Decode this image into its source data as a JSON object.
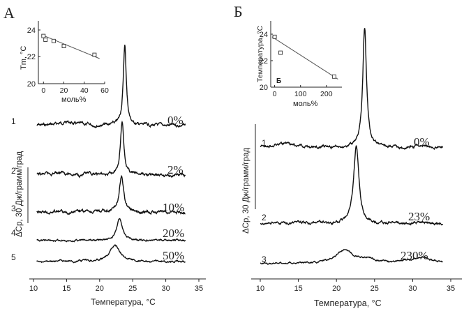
{
  "chart_data": [
    {
      "type": "line",
      "panel_label": "А",
      "xlabel": "Температура, °C",
      "ylabel": "ΔCp, 30 Дж/грамм/град",
      "xlim": [
        10,
        35
      ],
      "xticks": [
        "10",
        "15",
        "20",
        "25",
        "30",
        "35"
      ],
      "series": [
        {
          "name": "1",
          "concentration_label": "0%",
          "baseline": 180,
          "noise": 2.5,
          "features": [
            [
              23.8,
              0.28,
              115
            ],
            [
              15.0,
              1.3,
              5
            ]
          ]
        },
        {
          "name": "2",
          "concentration_label": "2%",
          "baseline": 251,
          "noise": 2.5,
          "features": [
            [
              23.4,
              0.32,
              77
            ],
            [
              14.0,
              1.3,
              4
            ]
          ]
        },
        {
          "name": "3",
          "concentration_label": "10%",
          "baseline": 304,
          "noise": 2.5,
          "features": [
            [
              23.3,
              0.4,
              51
            ]
          ]
        },
        {
          "name": "4",
          "concentration_label": "20%",
          "baseline": 345,
          "noise": 1.5,
          "features": [
            [
              23.0,
              0.5,
              33
            ]
          ]
        },
        {
          "name": "5",
          "concentration_label": "50%",
          "baseline": 375,
          "noise": 1.5,
          "features": [
            [
              22.3,
              0.9,
              24
            ]
          ]
        }
      ],
      "inset": {
        "xlabel": "моль%",
        "ylabel": "Tm, °C",
        "xlim": [
          -5,
          60
        ],
        "ylim": [
          20,
          25
        ],
        "xticks": [
          "0",
          "20",
          "40",
          "60"
        ],
        "yticks": [
          "20",
          "22",
          "24"
        ],
        "points": [
          [
            0,
            23.8
          ],
          [
            2,
            23.5
          ],
          [
            10,
            23.4
          ],
          [
            20,
            23.0
          ],
          [
            50,
            22.3
          ]
        ],
        "fit": [
          [
            -2,
            23.9
          ],
          [
            55,
            22.0
          ]
        ]
      }
    },
    {
      "type": "line",
      "panel_label": "Б",
      "xlabel": "Температура, °C",
      "ylabel": "ΔCp, 30 Дж/грамм/град",
      "xlim": [
        10,
        35
      ],
      "xticks": [
        "10",
        "15",
        "20",
        "25",
        "30",
        "35"
      ],
      "series": [
        {
          "name": "1",
          "concentration_label": "0%",
          "baseline": 211,
          "noise": 2.5,
          "features": [
            [
              23.7,
              0.3,
              170
            ],
            [
              13.0,
              1.3,
              5
            ]
          ]
        },
        {
          "name": "2",
          "concentration_label": "23%",
          "baseline": 320,
          "noise": 2.5,
          "features": [
            [
              22.6,
              0.42,
              110
            ]
          ]
        },
        {
          "name": "3",
          "concentration_label": "230%",
          "baseline": 378,
          "noise": 1.5,
          "features": [
            [
              21.0,
              1.4,
              18
            ],
            [
              24.0,
              1.3,
              6
            ],
            [
              31.0,
              1.6,
              9
            ]
          ]
        }
      ],
      "inset": {
        "panel_label": "Б",
        "xlabel": "моль%",
        "ylabel": "Температура, °C",
        "xlim": [
          -15,
          260
        ],
        "ylim": [
          20,
          25
        ],
        "xticks": [
          "0",
          "100",
          "200"
        ],
        "yticks": [
          "20",
          "22",
          "24"
        ],
        "points": [
          [
            0,
            23.8
          ],
          [
            23,
            22.6
          ],
          [
            230,
            20.8
          ]
        ],
        "fit": [
          [
            -10,
            23.8
          ],
          [
            245,
            20.6
          ]
        ]
      }
    }
  ]
}
